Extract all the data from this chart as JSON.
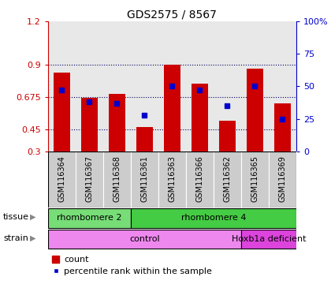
{
  "title": "GDS2575 / 8567",
  "samples": [
    "GSM116364",
    "GSM116367",
    "GSM116368",
    "GSM116361",
    "GSM116363",
    "GSM116366",
    "GSM116362",
    "GSM116365",
    "GSM116369"
  ],
  "count_values": [
    0.845,
    0.668,
    0.7,
    0.468,
    0.9,
    0.77,
    0.515,
    0.87,
    0.63
  ],
  "percentile_values": [
    47,
    38,
    37,
    28,
    50,
    47,
    35,
    50,
    25
  ],
  "ylim_left": [
    0.3,
    1.2
  ],
  "ylim_right": [
    0,
    100
  ],
  "yticks_left": [
    0.3,
    0.45,
    0.675,
    0.9,
    1.2
  ],
  "ytick_labels_left": [
    "0.3",
    "0.45",
    "0.675",
    "0.9",
    "1.2"
  ],
  "yticks_right": [
    0,
    25,
    50,
    75,
    100
  ],
  "ytick_labels_right": [
    "0",
    "25",
    "50",
    "75",
    "100%"
  ],
  "bar_color": "#cc0000",
  "dot_color": "#0000cc",
  "bar_width": 0.6,
  "tissue_groups": [
    {
      "label": "rhombomere 2",
      "start": 0,
      "end": 3,
      "color": "#77dd77"
    },
    {
      "label": "rhombomere 4",
      "start": 3,
      "end": 9,
      "color": "#44cc44"
    }
  ],
  "strain_groups": [
    {
      "label": "control",
      "start": 0,
      "end": 7,
      "color": "#ee88ee"
    },
    {
      "label": "Hoxb1a deficient",
      "start": 7,
      "end": 9,
      "color": "#dd44dd"
    }
  ],
  "left_axis_color": "#cc0000",
  "right_axis_color": "#0000cc",
  "plot_bg": "#e8e8e8",
  "sample_box_color": "#cccccc",
  "tissue_label": "tissue",
  "strain_label": "strain",
  "legend_count": "count",
  "legend_pct": "percentile rank within the sample",
  "grid_yticks": [
    0.45,
    0.675,
    0.9
  ]
}
